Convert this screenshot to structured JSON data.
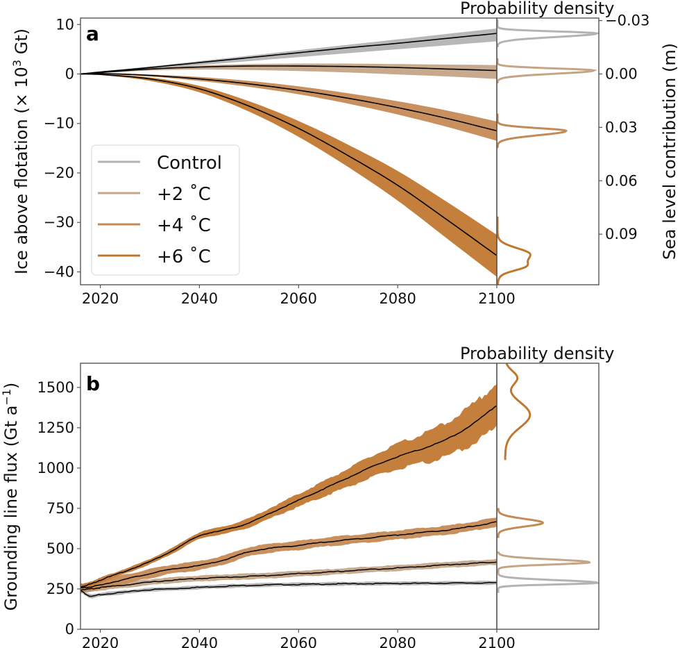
{
  "chart_data": [
    {
      "panel": "a",
      "type": "line",
      "title": "",
      "xlabel": "",
      "ylabel": "Ice above flotation (× 10³ Gt)",
      "ylabel_parts": {
        "main": "Ice above flotation (× 10",
        "sup": "3",
        "tail": " Gt)"
      },
      "xlim": [
        2016,
        2100
      ],
      "ylim": [
        -42.6,
        11.3
      ],
      "xticks": [
        2020,
        2040,
        2060,
        2080,
        2100
      ],
      "yticks": [
        10,
        0,
        -10,
        -20,
        -30,
        -40
      ],
      "ytick_labels": [
        "10",
        "0",
        "−10",
        "−20",
        "−30",
        "−40"
      ],
      "grid": false,
      "legend_position": "lower-left",
      "x": [
        2016,
        2020,
        2030,
        2040,
        2050,
        2060,
        2070,
        2080,
        2090,
        2100
      ],
      "series": [
        {
          "name": "Control",
          "color": "#b3b3b3",
          "values": [
            0,
            0.4,
            1.3,
            2.3,
            3.3,
            4.3,
            5.3,
            6.2,
            7.2,
            8.2
          ],
          "lower": [
            0,
            0.3,
            1.0,
            1.8,
            2.6,
            3.4,
            4.2,
            5.0,
            5.8,
            6.6
          ],
          "upper": [
            0,
            0.5,
            1.5,
            2.6,
            3.7,
            4.8,
            5.9,
            7.0,
            8.1,
            9.2
          ]
        },
        {
          "name": "+2 °C",
          "color": "#c4a587",
          "values": [
            0,
            0.3,
            1.0,
            1.4,
            1.6,
            1.6,
            1.5,
            1.3,
            1.0,
            0.7
          ],
          "lower": [
            0,
            0.2,
            0.7,
            0.9,
            0.8,
            0.6,
            0.3,
            -0.1,
            -0.5,
            -1.0
          ],
          "upper": [
            0,
            0.4,
            1.2,
            1.7,
            2.0,
            2.1,
            2.1,
            2.0,
            1.9,
            1.8
          ]
        },
        {
          "name": "+4 °C",
          "color": "#c48a55",
          "values": [
            0,
            0.1,
            -0.3,
            -1.0,
            -2.0,
            -3.3,
            -4.9,
            -6.8,
            -9.0,
            -11.5
          ],
          "lower": [
            0,
            0.0,
            -0.5,
            -1.4,
            -2.6,
            -4.1,
            -6.0,
            -8.2,
            -10.7,
            -13.5
          ],
          "upper": [
            0,
            0.2,
            -0.1,
            -0.6,
            -1.4,
            -2.5,
            -3.9,
            -5.5,
            -7.4,
            -9.6
          ]
        },
        {
          "name": "+6 °C",
          "color": "#c07830",
          "values": [
            0,
            -0.1,
            -1.0,
            -3.0,
            -6.5,
            -11.0,
            -16.5,
            -22.5,
            -29.5,
            -36.7
          ],
          "lower": [
            0,
            -0.2,
            -1.4,
            -3.7,
            -7.6,
            -12.7,
            -18.8,
            -25.6,
            -33.3,
            -41.0
          ],
          "upper": [
            0,
            0.0,
            -0.7,
            -2.4,
            -5.5,
            -9.5,
            -14.3,
            -19.6,
            -25.9,
            -32.5
          ]
        }
      ],
      "density": {
        "title": "Probability density",
        "secondary_ylabel": "Sea level contribution (m)",
        "secondary_yticks": [
          -0.03,
          0.0,
          0.03,
          0.06,
          0.09
        ],
        "secondary_ytick_labels": [
          "−0.03",
          "0.00",
          "0.03",
          "0.06",
          "0.09"
        ],
        "sea_level_at_ice_zero": 0.0,
        "sea_level_per_1000Gt": -0.00278,
        "curves": [
          {
            "name": "Control",
            "color": "#b3b3b3",
            "peak_value": 8.2,
            "spread_low": 2.2,
            "spread_high": 1.2,
            "peak_density": 1.0
          },
          {
            "name": "+2 °C",
            "color": "#c4a587",
            "peak_value": 0.7,
            "spread_low": 2.0,
            "spread_high": 1.3,
            "peak_density": 0.97
          },
          {
            "name": "+4 °C",
            "color": "#c48a55",
            "peak_value": -11.5,
            "spread_low": 2.7,
            "spread_high": 1.7,
            "peak_density": 0.69
          },
          {
            "name": "+6 °C",
            "color": "#c07830",
            "peak_value": -36.5,
            "spread_low": 6.0,
            "spread_high": 4.0,
            "peak_density": 0.33,
            "shoulder_value": -39.0,
            "shoulder_density": 0.14
          }
        ]
      },
      "panel_label": "a"
    },
    {
      "panel": "b",
      "type": "line",
      "title": "",
      "xlabel": "",
      "ylabel": "Grounding line flux (Gt a⁻¹)",
      "ylabel_parts": {
        "main": "Grounding line flux (Gt a",
        "sup": "−1",
        "tail": ")"
      },
      "xlim": [
        2016,
        2100
      ],
      "ylim": [
        0,
        1650
      ],
      "xticks": [
        2020,
        2040,
        2060,
        2080,
        2100
      ],
      "yticks": [
        0,
        250,
        500,
        750,
        1000,
        1250,
        1500
      ],
      "ytick_labels": [
        "0",
        "250",
        "500",
        "750",
        "1000",
        "1250",
        "1500"
      ],
      "grid": false,
      "x": [
        2016,
        2018,
        2020,
        2025,
        2030,
        2035,
        2040,
        2045,
        2050,
        2055,
        2060,
        2065,
        2070,
        2075,
        2080,
        2085,
        2090,
        2095,
        2100
      ],
      "series": [
        {
          "name": "Control",
          "color": "#b3b3b3",
          "values": [
            240,
            205,
            215,
            230,
            245,
            252,
            260,
            267,
            272,
            276,
            278,
            280,
            282,
            283,
            284,
            285,
            286,
            287,
            288
          ],
          "halfwidth": 12
        },
        {
          "name": "+2 °C",
          "color": "#c4a587",
          "values": [
            245,
            250,
            258,
            275,
            292,
            305,
            315,
            322,
            328,
            335,
            345,
            352,
            362,
            372,
            380,
            390,
            400,
            408,
            418
          ],
          "halfwidth": 18
        },
        {
          "name": "+4 °C",
          "color": "#c48a55",
          "values": [
            255,
            262,
            275,
            310,
            345,
            375,
            395,
            430,
            480,
            505,
            520,
            540,
            555,
            570,
            585,
            600,
            615,
            638,
            665
          ],
          "halfwidth": 28
        },
        {
          "name": "+6 °C",
          "color": "#c07830",
          "values": [
            262,
            280,
            305,
            360,
            420,
            495,
            580,
            615,
            660,
            730,
            800,
            870,
            940,
            1010,
            1070,
            1120,
            1180,
            1270,
            1390
          ],
          "halfwidth_start": 15,
          "halfwidth_end": 140
        }
      ],
      "density": {
        "title": "Probability density",
        "curves": [
          {
            "name": "Control",
            "color": "#b3b3b3",
            "peak_value": 288,
            "spread_low": 30,
            "spread_high": 50,
            "peak_density": 1.0
          },
          {
            "name": "+2 °C",
            "color": "#c4a587",
            "peak_value": 415,
            "spread_low": 40,
            "spread_high": 55,
            "peak_density": 0.92
          },
          {
            "name": "+4 °C",
            "color": "#c48a55",
            "peak_value": 660,
            "spread_low": 70,
            "spread_high": 75,
            "peak_density": 0.45
          },
          {
            "name": "+6 °C",
            "color": "#c07830",
            "peak_value": 1400,
            "spread_low": 280,
            "spread_high": 220,
            "peak_density": 0.12
          }
        ]
      },
      "panel_label": "b"
    }
  ],
  "legend": {
    "entries": [
      {
        "label": "Control",
        "color": "#b3b3b3"
      },
      {
        "label": "+2 ˚C",
        "color": "#c4a587"
      },
      {
        "label": "+4 ˚C",
        "color": "#c48a55"
      },
      {
        "label": "+6 ˚C",
        "color": "#c07830"
      }
    ]
  },
  "mean_line_color": "#000000"
}
